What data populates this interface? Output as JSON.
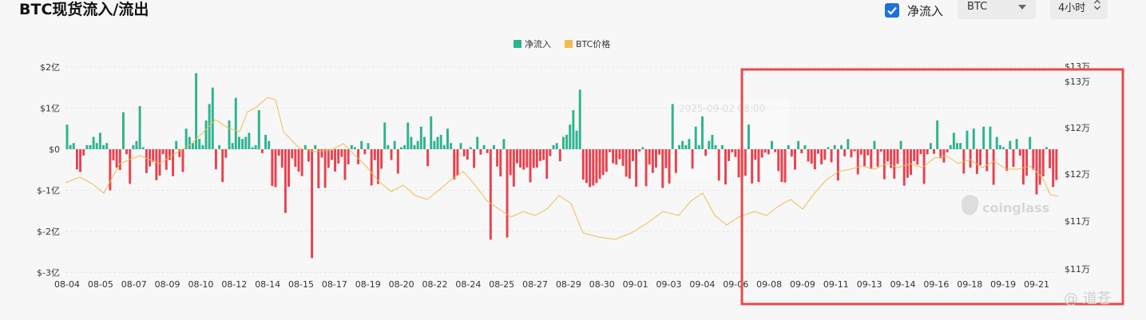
{
  "header": {
    "title": "BTC现货流入/流出",
    "net_flow_checkbox_label": "净流入",
    "net_flow_checked": true,
    "asset_select_value": "BTC",
    "interval_select_value": "4小时"
  },
  "watermark": {
    "brand": "coinglass",
    "author": "@ 道苍"
  },
  "tooltip_ghost": {
    "text": "2025-09-02 08:00"
  },
  "colors": {
    "inflow": "#2db48f",
    "outflow": "#e8424f",
    "price": "#f0bd4f",
    "highlight": "#e84a4a",
    "checkbox": "#1e6fe0"
  },
  "chart_data": {
    "type": "bar",
    "legend": [
      "净流入",
      "BTC价格"
    ],
    "legend_position": "top-center",
    "grid": true,
    "x_tick_labels": [
      "08-04",
      "08-05",
      "08-07",
      "08-09",
      "08-10",
      "08-12",
      "08-14",
      "08-15",
      "08-17",
      "08-19",
      "08-20",
      "08-22",
      "08-24",
      "08-25",
      "08-27",
      "08-29",
      "08-30",
      "09-01",
      "09-03",
      "09-04",
      "09-06",
      "09-08",
      "09-09",
      "09-11",
      "09-13",
      "09-14",
      "09-16",
      "09-18",
      "09-19",
      "09-21"
    ],
    "y_left_ticks": [
      "$2亿",
      "$1亿",
      "$0",
      "$-1亿",
      "$-2亿",
      "$-3亿"
    ],
    "y_left_range": [
      -3,
      2
    ],
    "y_right_ticks": [
      "$13万",
      "$13万",
      "$12万",
      "$12万",
      "$11万",
      "$11万"
    ],
    "y_right_range": [
      10.75,
      13.25
    ],
    "series": [
      {
        "name": "净流入",
        "unit": "亿",
        "inflow_values": [
          0.6,
          0.1,
          0.15,
          0,
          0,
          0,
          0.1,
          0.1,
          0.3,
          0.15,
          0.4,
          0.1,
          0.15,
          0,
          0,
          0,
          0,
          0.9,
          0,
          0,
          0.1,
          0.2,
          1.05,
          0.05,
          0,
          0,
          0,
          0,
          0,
          0,
          0,
          0,
          0,
          0.2,
          0,
          0,
          0.5,
          0.3,
          0.15,
          1.85,
          0.25,
          0.1,
          0.7,
          1.1,
          1.5,
          0,
          0.1,
          0,
          0,
          0.7,
          0.15,
          1.25,
          0.3,
          0.25,
          0.3,
          0.4,
          0.05,
          0.1,
          0.95,
          0,
          0.35,
          0.2,
          0,
          0,
          0,
          0,
          0,
          0,
          0,
          0,
          0,
          0,
          0.1,
          0,
          0,
          0.1,
          0,
          0,
          0,
          0,
          0,
          0,
          0,
          0,
          0,
          0,
          0.1,
          0.05,
          0,
          0.2,
          0,
          0.15,
          0,
          0,
          0,
          0,
          0.65,
          0.1,
          0,
          0.2,
          0,
          0.05,
          0.1,
          0.65,
          0.3,
          0.1,
          0.2,
          0.55,
          0.3,
          0,
          0.8,
          0.2,
          0.3,
          0.35,
          0.1,
          0.5,
          0.15,
          0,
          0,
          0.15,
          0,
          0,
          0.05,
          0,
          0.3,
          0,
          0.1,
          0,
          0,
          0.1,
          0,
          0,
          0.25,
          0,
          0,
          0,
          0,
          0,
          0,
          0,
          0,
          0,
          0,
          0,
          0,
          0,
          0,
          0.1,
          0.15,
          0,
          0.3,
          0.35,
          0.6,
          0.95,
          0.45,
          1.45,
          0,
          0,
          0,
          0,
          0,
          0,
          0,
          0,
          0,
          0,
          0,
          0,
          0,
          0,
          0,
          0,
          0,
          0,
          0.05,
          0,
          0,
          0,
          0,
          0,
          0,
          0,
          0,
          1.1,
          0,
          0.1,
          0.2,
          0.1,
          0.25,
          0,
          0.55,
          0.1,
          0.8,
          0,
          0.2,
          0.35,
          0.1,
          0,
          0.1,
          0,
          0,
          0,
          0,
          0,
          0,
          0,
          0.6,
          0,
          0,
          0,
          0,
          0,
          0,
          0.2,
          0,
          0,
          0,
          0,
          0.1,
          0,
          0,
          0.2,
          0,
          0.1,
          0,
          0,
          0,
          0,
          0,
          0,
          0.05,
          0,
          0.1,
          0,
          0.1,
          0,
          0.25,
          0,
          0,
          0,
          0,
          0,
          0,
          0,
          0.2,
          0,
          0,
          0,
          0,
          0,
          0,
          0,
          0.2,
          0,
          0,
          0,
          0,
          0,
          0,
          0,
          0,
          0.15,
          0,
          0.7,
          0,
          0,
          0,
          0.1,
          0.4,
          0.15,
          0.15,
          0,
          0.45,
          0,
          0.5,
          0,
          0,
          0.55,
          0,
          0.55,
          0,
          0.3,
          0.1,
          0.05,
          0,
          0.2,
          0,
          0.25,
          0,
          0,
          0,
          0.3,
          0,
          0,
          0,
          0,
          0.05,
          0,
          0,
          0,
          0,
          0,
          0,
          0,
          0,
          0,
          0.1,
          0.3,
          0,
          0,
          0,
          0,
          0,
          0,
          0,
          0,
          0,
          0,
          0,
          0,
          0,
          0,
          0,
          0.1,
          0,
          0,
          0,
          0.35,
          0.25,
          0.2,
          0,
          0,
          0,
          0,
          0.2,
          0,
          0.15,
          0,
          0.25,
          0,
          0.05,
          0,
          0,
          0,
          0.3,
          0.5,
          0.2,
          0.1,
          0.55,
          0,
          0.2,
          0.15,
          0.1,
          0.45,
          0.5,
          0,
          0,
          0,
          0.15,
          0,
          0.25,
          0,
          0,
          0,
          0,
          0.15,
          0,
          0.1,
          0.2,
          0,
          0.25,
          0.1,
          0,
          0.05,
          0,
          0,
          0.1,
          0,
          0.05,
          0,
          0,
          0,
          0,
          0,
          0,
          0,
          0.1,
          0,
          0,
          0.95,
          0,
          0.2,
          0,
          0,
          0,
          0,
          0,
          0.65,
          0,
          0,
          0,
          0,
          0,
          0,
          0,
          0,
          0,
          0,
          0,
          0,
          0,
          0,
          0,
          0,
          0,
          0,
          0,
          0,
          0,
          0,
          0,
          0,
          0,
          0,
          0,
          0,
          0.15,
          0,
          0,
          0.1,
          0,
          0.25,
          0,
          0,
          0.3,
          0,
          0.15,
          0,
          0.05,
          0,
          0,
          0,
          0.2,
          0,
          0.3,
          0,
          0,
          0,
          0,
          0,
          0.25,
          0,
          0,
          0.1,
          0,
          0,
          0.05,
          0,
          0,
          0.1,
          0,
          0,
          0,
          0,
          0,
          0,
          0,
          0.1,
          0.6,
          0,
          0,
          0,
          0.5,
          0,
          0.05,
          0,
          0,
          0.15,
          0,
          0,
          0,
          0,
          0,
          0.1,
          0,
          0,
          0.1,
          0,
          0.1,
          0,
          0,
          0,
          0,
          0,
          0,
          0,
          0,
          0,
          0,
          0,
          0.3,
          0,
          0.1,
          0,
          0,
          0.25,
          0,
          0,
          0.2,
          0,
          0,
          0,
          0.2,
          0.35,
          0,
          0,
          0.25,
          0,
          0,
          0,
          0.4,
          0,
          0,
          0,
          0.15,
          0.5,
          0,
          0.2,
          0,
          0,
          0.35,
          0.1,
          0.1,
          0,
          0,
          0,
          0.2,
          0,
          0,
          0,
          0.1,
          0,
          0,
          0.05,
          0.25,
          0,
          0.1,
          0.15,
          0,
          0.2,
          0.3,
          0,
          0,
          0,
          0.1,
          0,
          0.05,
          0,
          0.1,
          0,
          0,
          0,
          0.1,
          0,
          0,
          0,
          0,
          0,
          0,
          0,
          0,
          0.1,
          0,
          0,
          0,
          0,
          0,
          0,
          0.2,
          0,
          0.1,
          0,
          0.15,
          0,
          0.1,
          0,
          0,
          0,
          0.15,
          0,
          0.1,
          0,
          0.1,
          0,
          0.25,
          0,
          0,
          0,
          0.15,
          0,
          0,
          0,
          0.1,
          0,
          0,
          0,
          0.1,
          0.15,
          0,
          0.2,
          0.1,
          0.05,
          0,
          0,
          0,
          0,
          0.6,
          0,
          0.1,
          0.05,
          0.2,
          0,
          0,
          0.4,
          0.1,
          0,
          0,
          0.1,
          0,
          0,
          0,
          0,
          0.3,
          0,
          0.1,
          0,
          0,
          0,
          0.2,
          0,
          0,
          0,
          0.05,
          0,
          0.2,
          0,
          0,
          0.15,
          0,
          0,
          0.1,
          0,
          0,
          0,
          0,
          0.1,
          0,
          0.1,
          0,
          0,
          0,
          0,
          0,
          0.1,
          0,
          0,
          0,
          0.3,
          0,
          0.1,
          0,
          0,
          0,
          0,
          0,
          0,
          0,
          0.15,
          0,
          0,
          0,
          0.1,
          0,
          0,
          0,
          0.05,
          0,
          0,
          0,
          0.2,
          0.05,
          0,
          0,
          0,
          0,
          0,
          0,
          0,
          0,
          0,
          0,
          0,
          0.15,
          0,
          0,
          0,
          0,
          0,
          0,
          0,
          0.25,
          0,
          0,
          0,
          0,
          0,
          0.05,
          0,
          0,
          0,
          0,
          0,
          0,
          0,
          0,
          0,
          0,
          0,
          0,
          0,
          0,
          0
        ],
        "outflow_values": []
      },
      {
        "name": "BTC价格",
        "unit": "万",
        "values": []
      }
    ]
  }
}
